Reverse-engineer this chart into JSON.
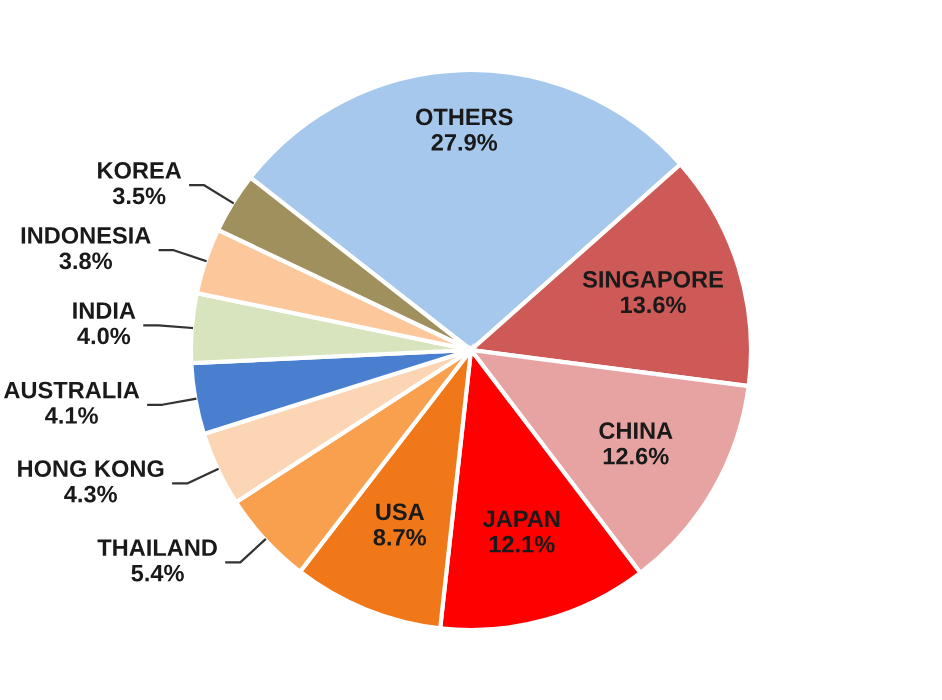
{
  "chart_data": {
    "type": "pie",
    "categories": [
      "OTHERS",
      "SINGAPORE",
      "CHINA",
      "JAPAN",
      "USA",
      "THAILAND",
      "HONG KONG",
      "AUSTRALIA",
      "INDIA",
      "INDONESIA",
      "KOREA"
    ],
    "values": [
      27.9,
      13.6,
      12.6,
      12.1,
      8.7,
      5.4,
      4.3,
      4.1,
      4.0,
      3.8,
      3.5
    ],
    "value_labels": [
      "27.9%",
      "13.6%",
      "12.6%",
      "12.1%",
      "8.7%",
      "5.4%",
      "4.3%",
      "4.1%",
      "4.0%",
      "3.8%",
      "3.5%"
    ],
    "colors": [
      "#a6c8ec",
      "#cd5a57",
      "#e6a3a2",
      "#ff0000",
      "#f07818",
      "#f9a04e",
      "#fcd5b4",
      "#4a7fd0",
      "#d7e4bd",
      "#fcc89b",
      "#a0905e"
    ]
  }
}
